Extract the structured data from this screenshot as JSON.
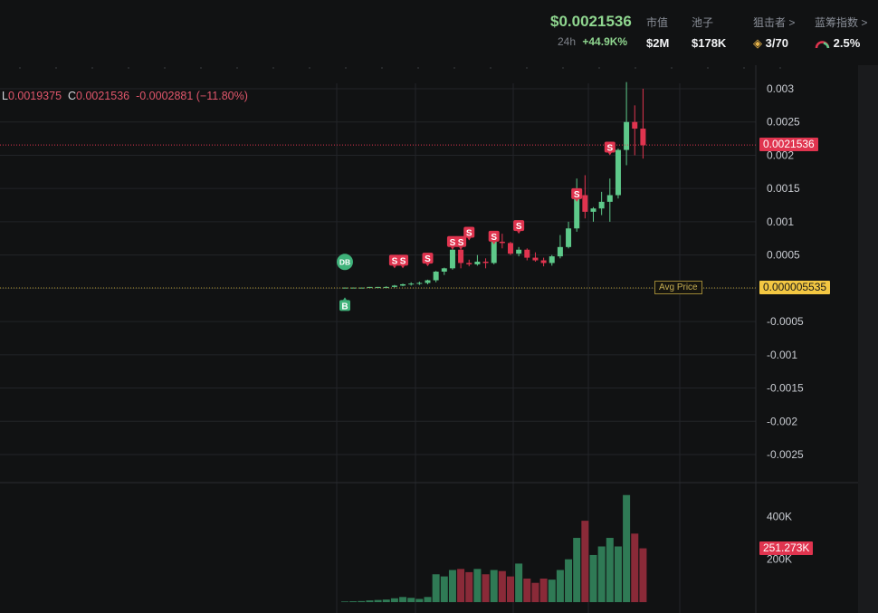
{
  "header": {
    "price": "$0.0021536",
    "change_label": "24h",
    "change_value": "+44.9K%",
    "stats": [
      {
        "label": "市值",
        "value": "$2M"
      },
      {
        "label": "池子",
        "value": "$178K"
      },
      {
        "label": "狙击者 >",
        "value": "3/70"
      },
      {
        "label": "蓝筹指数 >",
        "value": "2.5%"
      }
    ]
  },
  "ohlc": {
    "l_label": "L",
    "l_value": "0.0019375",
    "c_label": "C",
    "c_value": "0.0021536",
    "change": "-0.0002881 (−11.80%)"
  },
  "price_axis_ticks": [
    "0.003",
    "0.0025",
    "0.002",
    "0.0015",
    "0.001",
    "0.0005",
    "-0.0005",
    "-0.001",
    "-0.0015",
    "-0.002",
    "-0.0025"
  ],
  "volume_axis_ticks": [
    "400K",
    "200K"
  ],
  "tags": {
    "last_price": "0.0021536",
    "avg_price": "0.000005535",
    "avg_label": "Avg Price",
    "volume_last": "251.273K"
  },
  "markers": {
    "db": "DB",
    "buy": "B",
    "sell": "S"
  },
  "colors": {
    "up": "#5ec98a",
    "down": "#e0344f",
    "grid": "#222428",
    "bg": "#111213"
  },
  "chart_data": {
    "type": "candlestick",
    "ylim": [
      -0.0029,
      0.0031
    ],
    "volume_ylim": [
      0,
      520000
    ],
    "candles": [
      {
        "o": 0.0,
        "h": 1e-05,
        "l": 0.0,
        "c": 1e-05,
        "v": 3000
      },
      {
        "o": 1e-05,
        "h": 1e-05,
        "l": 0.0,
        "c": 1e-05,
        "v": 4000
      },
      {
        "o": 1e-05,
        "h": 1e-05,
        "l": 0.0,
        "c": 1e-05,
        "v": 5000
      },
      {
        "o": 1e-05,
        "h": 2e-05,
        "l": 1e-05,
        "c": 2e-05,
        "v": 8000
      },
      {
        "o": 2e-05,
        "h": 2e-05,
        "l": 1e-05,
        "c": 2e-05,
        "v": 10000
      },
      {
        "o": 2e-05,
        "h": 3e-05,
        "l": 1e-05,
        "c": 2e-05,
        "v": 12000
      },
      {
        "o": 2e-05,
        "h": 5e-05,
        "l": 1e-05,
        "c": 4e-05,
        "v": 18000
      },
      {
        "o": 4e-05,
        "h": 7e-05,
        "l": 3e-05,
        "c": 6e-05,
        "v": 24000
      },
      {
        "o": 6e-05,
        "h": 9e-05,
        "l": 4e-05,
        "c": 7e-05,
        "v": 20000
      },
      {
        "o": 7e-05,
        "h": 0.0001,
        "l": 5e-05,
        "c": 8e-05,
        "v": 15000
      },
      {
        "o": 8e-05,
        "h": 0.00013,
        "l": 6e-05,
        "c": 0.00012,
        "v": 24000
      },
      {
        "o": 0.00012,
        "h": 0.00026,
        "l": 9e-05,
        "c": 0.00025,
        "v": 130000
      },
      {
        "o": 0.00025,
        "h": 0.00031,
        "l": 0.0002,
        "c": 0.0003,
        "v": 120000
      },
      {
        "o": 0.0003,
        "h": 0.00062,
        "l": 0.00028,
        "c": 0.00058,
        "v": 150000
      },
      {
        "o": 0.00058,
        "h": 0.0006,
        "l": 0.0003,
        "c": 0.00038,
        "v": 155000
      },
      {
        "o": 0.00038,
        "h": 0.00043,
        "l": 0.00033,
        "c": 0.00036,
        "v": 140000
      },
      {
        "o": 0.00036,
        "h": 0.0005,
        "l": 0.00034,
        "c": 0.0004,
        "v": 155000
      },
      {
        "o": 0.0004,
        "h": 0.00045,
        "l": 0.0003,
        "c": 0.00038,
        "v": 130000
      },
      {
        "o": 0.00038,
        "h": 0.0008,
        "l": 0.00036,
        "c": 0.0007,
        "v": 150000
      },
      {
        "o": 0.0007,
        "h": 0.00082,
        "l": 0.0006,
        "c": 0.00068,
        "v": 145000
      },
      {
        "o": 0.00068,
        "h": 0.0007,
        "l": 0.0005,
        "c": 0.00052,
        "v": 120000
      },
      {
        "o": 0.00052,
        "h": 0.00062,
        "l": 0.00048,
        "c": 0.00058,
        "v": 180000
      },
      {
        "o": 0.00058,
        "h": 0.0006,
        "l": 0.00042,
        "c": 0.00046,
        "v": 110000
      },
      {
        "o": 0.00046,
        "h": 0.00054,
        "l": 0.0004,
        "c": 0.00042,
        "v": 90000
      },
      {
        "o": 0.00042,
        "h": 0.00046,
        "l": 0.00033,
        "c": 0.00038,
        "v": 110000
      },
      {
        "o": 0.00038,
        "h": 0.0005,
        "l": 0.00034,
        "c": 0.00048,
        "v": 105000
      },
      {
        "o": 0.00048,
        "h": 0.0008,
        "l": 0.00045,
        "c": 0.00062,
        "v": 150000
      },
      {
        "o": 0.00062,
        "h": 0.001,
        "l": 0.0006,
        "c": 0.0009,
        "v": 200000
      },
      {
        "o": 0.0009,
        "h": 0.00165,
        "l": 0.00085,
        "c": 0.0014,
        "v": 300000
      },
      {
        "o": 0.0014,
        "h": 0.0017,
        "l": 0.00105,
        "c": 0.00115,
        "v": 380000
      },
      {
        "o": 0.00115,
        "h": 0.00122,
        "l": 0.001,
        "c": 0.0012,
        "v": 220000
      },
      {
        "o": 0.0012,
        "h": 0.00145,
        "l": 0.0011,
        "c": 0.0013,
        "v": 260000
      },
      {
        "o": 0.0013,
        "h": 0.00165,
        "l": 0.001,
        "c": 0.0014,
        "v": 300000
      },
      {
        "o": 0.0014,
        "h": 0.0021,
        "l": 0.00135,
        "c": 0.00208,
        "v": 260000
      },
      {
        "o": 0.00208,
        "h": 0.0031,
        "l": 0.00185,
        "c": 0.0025,
        "v": 500000
      },
      {
        "o": 0.0025,
        "h": 0.00275,
        "l": 0.002,
        "c": 0.0024,
        "v": 320000
      },
      {
        "o": 0.0024,
        "h": 0.003,
        "l": 0.00195,
        "c": 0.00215,
        "v": 251273
      }
    ],
    "sell_markers": [
      {
        "i": 6,
        "price": 0.0003
      },
      {
        "i": 7,
        "price": 0.0003
      },
      {
        "i": 10,
        "price": 0.00033
      },
      {
        "i": 13,
        "price": 0.00058
      },
      {
        "i": 14,
        "price": 0.00058
      },
      {
        "i": 15,
        "price": 0.00072
      },
      {
        "i": 18,
        "price": 0.00066
      },
      {
        "i": 21,
        "price": 0.00082
      },
      {
        "i": 28,
        "price": 0.0013
      },
      {
        "i": 32,
        "price": 0.002
      }
    ],
    "buy_marker": {
      "i": 0,
      "price": 0.0
    },
    "db_marker": {
      "i": 0,
      "price": 0.00045
    },
    "last_price": 0.0021536,
    "avg_price": 5.535e-06
  }
}
